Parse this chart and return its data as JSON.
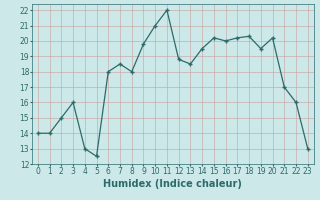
{
  "x": [
    0,
    1,
    2,
    3,
    4,
    5,
    6,
    7,
    8,
    9,
    10,
    11,
    12,
    13,
    14,
    15,
    16,
    17,
    18,
    19,
    20,
    21,
    22,
    23
  ],
  "y": [
    14,
    14,
    15,
    16,
    13,
    12.5,
    18,
    18.5,
    18,
    19.8,
    21,
    22,
    18.8,
    18.5,
    19.5,
    20.2,
    20,
    20.2,
    20.3,
    19.5,
    20.2,
    17,
    16,
    13
  ],
  "line_color": "#2d6b6b",
  "marker_color": "#2d6b6b",
  "bg_color": "#cce8e8",
  "grid_color": "#aacece",
  "xlabel": "Humidex (Indice chaleur)",
  "ylim": [
    12,
    22.4
  ],
  "xlim": [
    -0.5,
    23.5
  ],
  "yticks": [
    12,
    13,
    14,
    15,
    16,
    17,
    18,
    19,
    20,
    21,
    22
  ],
  "xticks": [
    0,
    1,
    2,
    3,
    4,
    5,
    6,
    7,
    8,
    9,
    10,
    11,
    12,
    13,
    14,
    15,
    16,
    17,
    18,
    19,
    20,
    21,
    22,
    23
  ],
  "tick_fontsize": 5.5,
  "xlabel_fontsize": 7.0
}
